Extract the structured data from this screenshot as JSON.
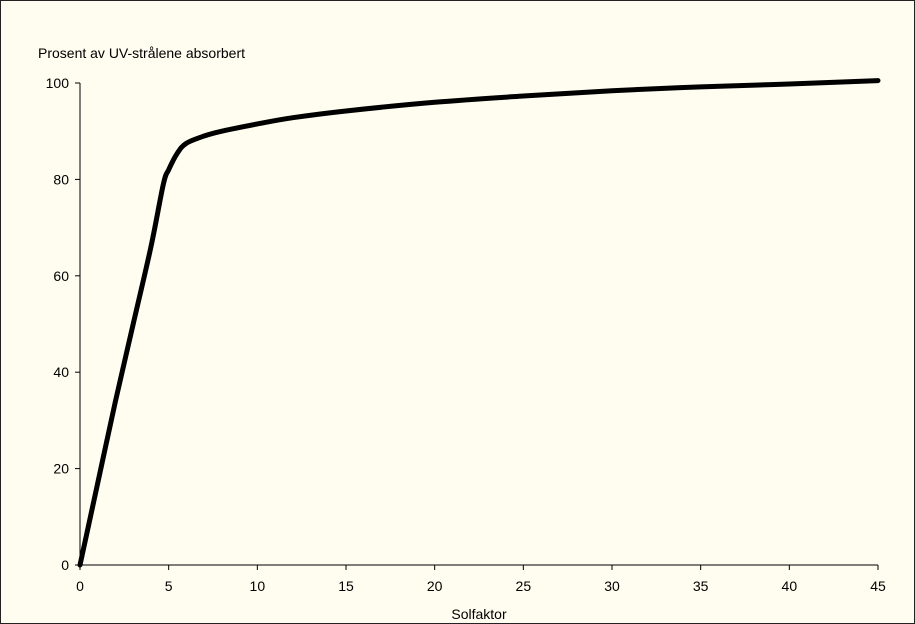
{
  "chart_data": {
    "type": "line",
    "title": "",
    "ylabel": "Prosent av UV-strålene absorbert",
    "xlabel": "Solfaktor",
    "xlim": [
      0,
      45
    ],
    "ylim": [
      0,
      100
    ],
    "x_ticks": [
      0,
      5,
      10,
      15,
      20,
      25,
      30,
      35,
      40,
      45
    ],
    "y_ticks": [
      0,
      20,
      40,
      60,
      80,
      100
    ],
    "grid": false,
    "legend": "none",
    "series": [
      {
        "color": "#000000",
        "points": [
          [
            0,
            0
          ],
          [
            1,
            17
          ],
          [
            2,
            34
          ],
          [
            3,
            50
          ],
          [
            4,
            66
          ],
          [
            4.7,
            79
          ],
          [
            5,
            82
          ],
          [
            5.5,
            85.5
          ],
          [
            6,
            87.5
          ],
          [
            7,
            89
          ],
          [
            8,
            90
          ],
          [
            10,
            91.5
          ],
          [
            12,
            92.8
          ],
          [
            15,
            94.2
          ],
          [
            20,
            96
          ],
          [
            25,
            97.3
          ],
          [
            30,
            98.4
          ],
          [
            35,
            99.2
          ],
          [
            40,
            99.8
          ],
          [
            45,
            100.5
          ]
        ]
      }
    ]
  }
}
